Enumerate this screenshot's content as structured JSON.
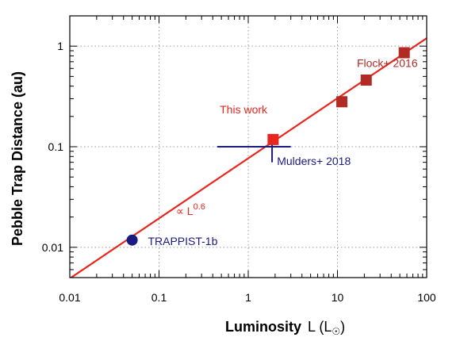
{
  "chart_data": {
    "type": "scatter",
    "x_scale": "log",
    "y_scale": "log",
    "xlim": [
      0.01,
      100
    ],
    "ylim": [
      0.005,
      2
    ],
    "grid": true,
    "x_ticks": [
      {
        "value": 0.01,
        "label": "0.01"
      },
      {
        "value": 0.1,
        "label": "0.1"
      },
      {
        "value": 1,
        "label": "1"
      },
      {
        "value": 10,
        "label": "10"
      },
      {
        "value": 100,
        "label": "100"
      }
    ],
    "y_ticks": [
      {
        "value": 0.01,
        "label": "0.01"
      },
      {
        "value": 0.1,
        "label": "0.1"
      },
      {
        "value": 1,
        "label": "1"
      }
    ],
    "xlabel": {
      "main": "Luminosity",
      "var": "L (L",
      "sun": "☉",
      "close": ")"
    },
    "ylabel": "Pebble Trap Distance  (au)",
    "fit_line": {
      "label_prefix": "∝ L",
      "exponent": "0.6",
      "points": [
        [
          0.01,
          0.0049
        ],
        [
          100,
          1.2
        ]
      ],
      "color": "#e8261e"
    },
    "series": [
      {
        "name": "Flock+ 2016",
        "color": "#b22a24",
        "marker": "square",
        "points": [
          [
            11.2,
            0.28
          ],
          [
            21,
            0.46
          ],
          [
            56,
            0.86
          ]
        ]
      },
      {
        "name": "This work",
        "color": "#e8261e",
        "marker": "square",
        "points": [
          [
            1.9,
            0.118
          ]
        ]
      },
      {
        "name": "TRAPPIST-1b",
        "color": "#1a1a80",
        "marker": "circle",
        "points": [
          [
            0.05,
            0.0118
          ]
        ]
      }
    ],
    "errorbar": {
      "name": "Mulders+ 2018",
      "color": "#1a1a80",
      "x": 1.85,
      "y": 0.1,
      "xerr": [
        0.45,
        3.0
      ],
      "yerr": [
        0.07,
        0.125
      ]
    },
    "annotations": [
      {
        "text": "Flock+ 2016",
        "color": "#b22a24",
        "x": 16.5,
        "y": 0.62
      },
      {
        "text": "This work",
        "color": "#e8261e",
        "x": 0.48,
        "y": 0.215
      },
      {
        "text": "Mulders+ 2018",
        "color": "#1a1a80",
        "x": 2.1,
        "y": 0.066
      },
      {
        "text": "TRAPPIST-1b",
        "color": "#1a1a80",
        "x": 0.075,
        "y": 0.0105
      }
    ],
    "fit_annotation": {
      "x": 0.155,
      "y": 0.021
    }
  }
}
